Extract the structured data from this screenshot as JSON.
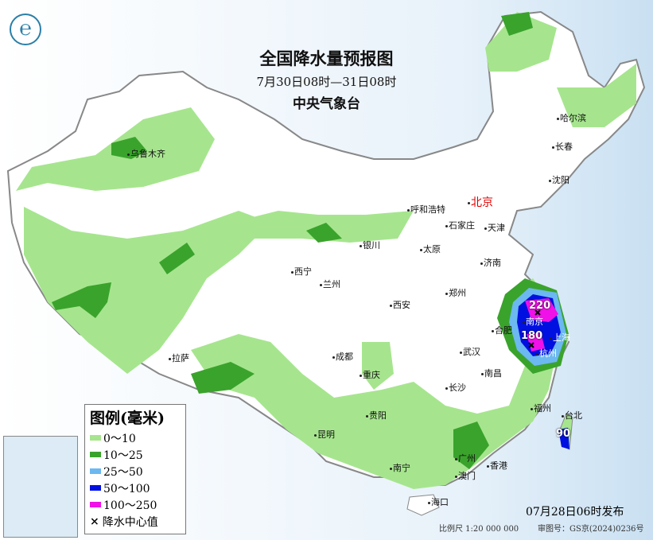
{
  "title": "全国降水量预报图",
  "period": "7月30日08时—31日08时",
  "agency": "中央气象台",
  "legend": {
    "title": "图例(毫米)",
    "items": [
      {
        "label": "0～10",
        "color": "#a6e58e"
      },
      {
        "label": "10～25",
        "color": "#3aa32c"
      },
      {
        "label": "25～50",
        "color": "#6cb8f0"
      },
      {
        "label": "50～100",
        "color": "#0010e0"
      },
      {
        "label": "100～250",
        "color": "#f010e8"
      }
    ],
    "center_marker": "降水中心值"
  },
  "centers": [
    {
      "value": "220"
    },
    {
      "value": "180"
    },
    {
      "value": "90"
    }
  ],
  "cities": [
    "乌鲁木齐",
    "哈尔滨",
    "长春",
    "沈阳",
    "呼和浩特",
    "北京",
    "天津",
    "石家庄",
    "太原",
    "济南",
    "银川",
    "西宁",
    "兰州",
    "西安",
    "郑州",
    "合肥",
    "南京",
    "上海",
    "杭州",
    "武汉",
    "拉萨",
    "成都",
    "重庆",
    "长沙",
    "南昌",
    "福州",
    "台北",
    "贵阳",
    "昆明",
    "南宁",
    "广州",
    "澳门",
    "香港",
    "海口"
  ],
  "footer": {
    "issued": "07月28日06时发布",
    "scale": "比例尺 1:20 000 000",
    "audit": "审图号：GS京(2024)0236号"
  },
  "logo_icon": "cma-logo-icon"
}
